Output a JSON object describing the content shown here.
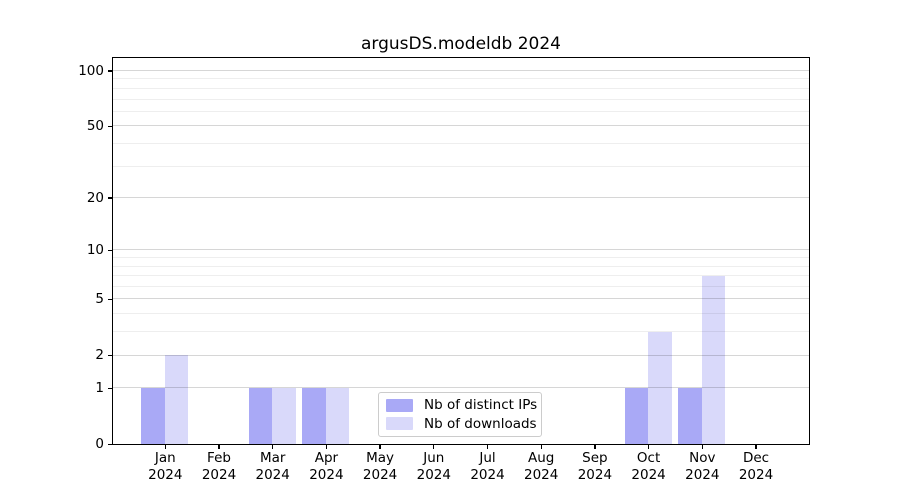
{
  "title": "argusDS.modeldb 2024",
  "chart_data": {
    "type": "bar",
    "categories": [
      "Jan",
      "Feb",
      "Mar",
      "Apr",
      "May",
      "Jun",
      "Jul",
      "Aug",
      "Sep",
      "Oct",
      "Nov",
      "Dec"
    ],
    "x_year_label": "2024",
    "series": [
      {
        "name": "Nb of distinct IPs",
        "color": "#a9a9f6",
        "values": [
          1,
          0,
          1,
          1,
          0,
          0,
          0,
          0,
          0,
          1,
          1,
          0
        ]
      },
      {
        "name": "Nb of downloads",
        "color": "#d9d9fa",
        "values": [
          2,
          0,
          1,
          1,
          0,
          0,
          0,
          0,
          0,
          3,
          7,
          0
        ]
      }
    ],
    "yscale": "log1p",
    "ylim": [
      0,
      117
    ],
    "yticks_major": [
      0,
      1,
      2,
      5,
      10,
      20,
      50,
      100
    ],
    "yticks_minor": [
      3,
      4,
      6,
      7,
      8,
      9,
      30,
      40,
      60,
      70,
      80,
      90
    ],
    "grid": "horizontal",
    "legend_position": "bottom-center"
  }
}
